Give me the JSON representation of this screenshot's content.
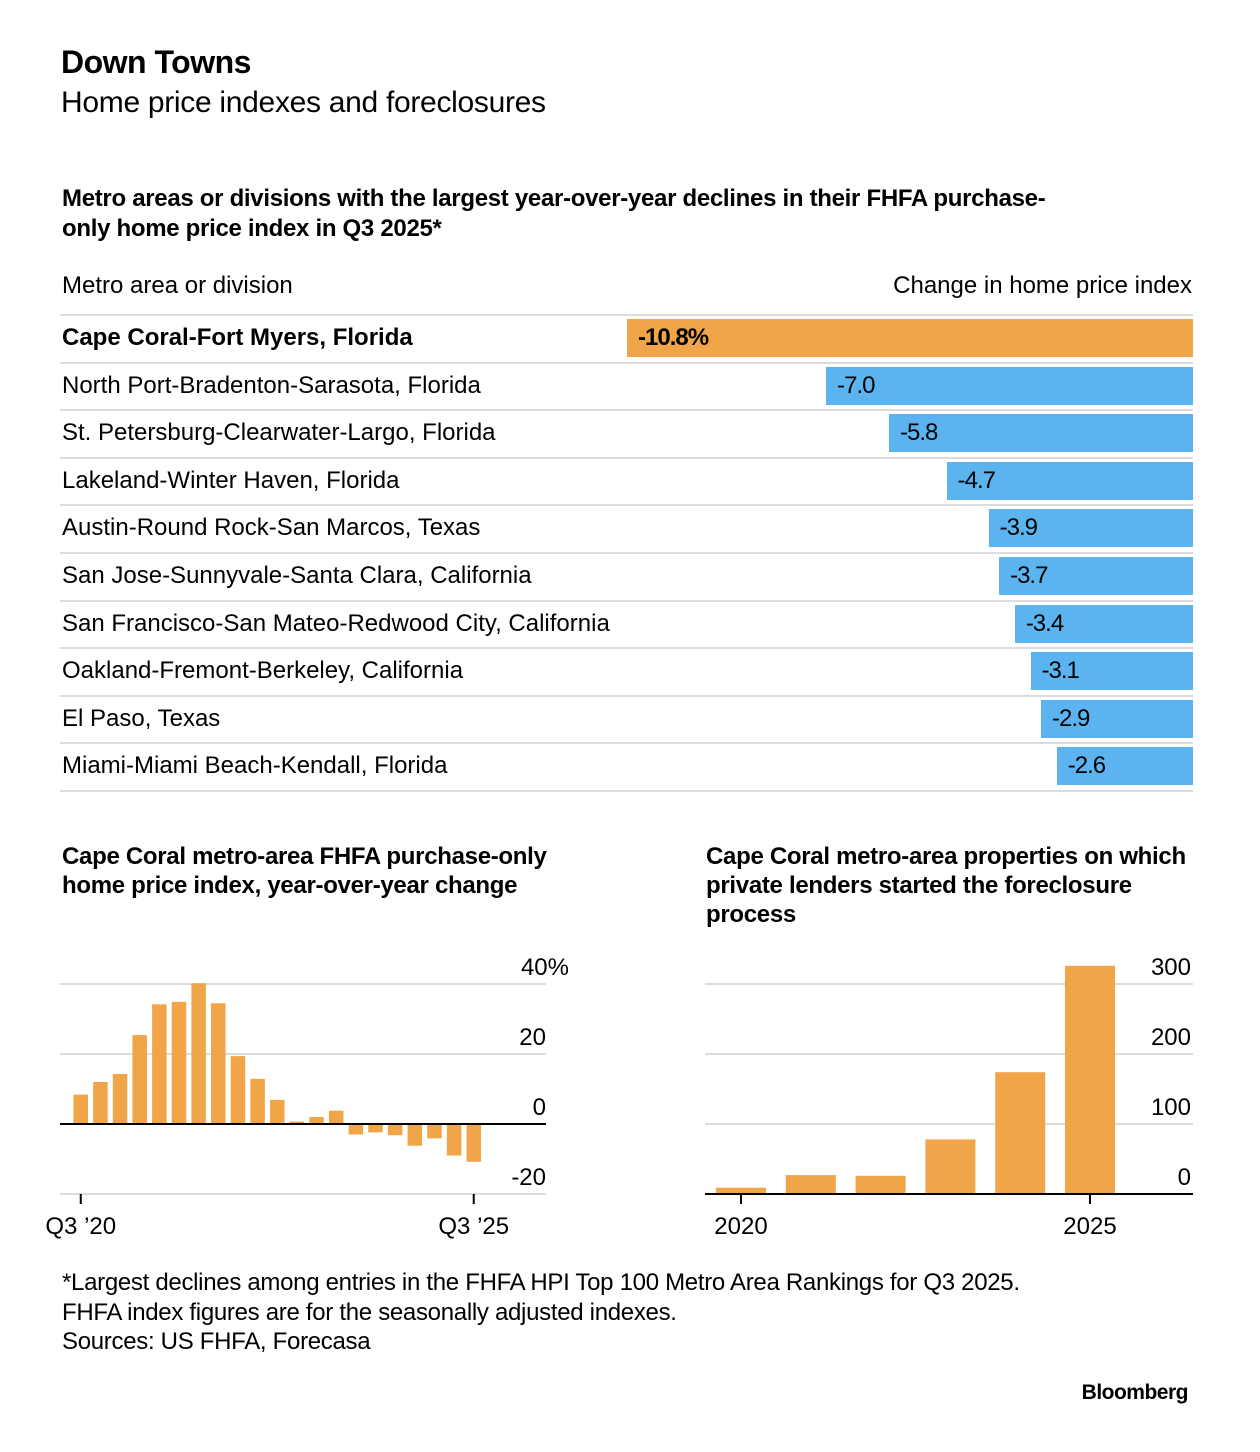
{
  "header": {
    "title": "Down Towns",
    "subtitle": "Home price indexes and foreclosures"
  },
  "colors": {
    "highlight": "#f0a548",
    "bar": "#5bb4f0",
    "grid": "#dcdcdc",
    "axis": "#000000"
  },
  "footer": {
    "note_line1": "*Largest declines among entries in the FHFA HPI Top 100 Metro Area Rankings for Q3 2025.",
    "note_line2": "FHFA index figures are for the seasonally adjusted indexes.",
    "sources": "Sources: US FHFA, Forecasa",
    "brand": "Bloomberg"
  },
  "chart_data": [
    {
      "type": "bar",
      "orientation": "horizontal",
      "title": "Metro areas or divisions with the largest year-over-year declines in their FHFA purchase-only home price index in Q3 2025*",
      "column_left": "Metro area or division",
      "column_right": "Change in home price index",
      "categories": [
        "Cape Coral-Fort Myers, Florida",
        "North Port-Bradenton-Sarasota, Florida",
        "St. Petersburg-Clearwater-Largo, Florida",
        "Lakeland-Winter Haven, Florida",
        "Austin-Round Rock-San Marcos, Texas",
        "San Jose-Sunnyvale-Santa Clara, California",
        "San Francisco-San Mateo-Redwood City, California",
        "Oakland-Fremont-Berkeley, California",
        "El Paso, Texas",
        "Miami-Miami Beach-Kendall, Florida"
      ],
      "values": [
        -10.8,
        -7.0,
        -5.8,
        -4.7,
        -3.9,
        -3.7,
        -3.4,
        -3.1,
        -2.9,
        -2.6
      ],
      "labels": [
        "-10.8%",
        "-7.0",
        "-5.8",
        "-4.7",
        "-3.9",
        "-3.7",
        "-3.4",
        "-3.1",
        "-2.9",
        "-2.6"
      ],
      "highlight_index": 0,
      "xlim": [
        -10.8,
        0
      ]
    },
    {
      "type": "bar",
      "title": "Cape Coral metro-area FHFA purchase-only home price index, year-over-year change",
      "xlabel": "",
      "ylabel": "",
      "x_tick_labels": [
        {
          "index": 0,
          "label": "Q3 ’20"
        },
        {
          "index": 20,
          "label": "Q3 ’25"
        }
      ],
      "y_ticks": [
        40,
        20,
        0,
        -20
      ],
      "y_tick_labels": [
        "40%",
        "20",
        "0",
        "-20"
      ],
      "ylim": [
        -20,
        40
      ],
      "grid": true,
      "categories": [
        "Q3 2020",
        "Q4 2020",
        "Q1 2021",
        "Q2 2021",
        "Q3 2021",
        "Q4 2021",
        "Q1 2022",
        "Q2 2022",
        "Q3 2022",
        "Q4 2022",
        "Q1 2023",
        "Q2 2023",
        "Q3 2023",
        "Q4 2023",
        "Q1 2024",
        "Q2 2024",
        "Q3 2024",
        "Q4 2024",
        "Q1 2025",
        "Q2 2025",
        "Q3 2025"
      ],
      "values": [
        8.4,
        12.0,
        14.3,
        25.4,
        34.2,
        34.9,
        40.2,
        34.5,
        19.4,
        12.9,
        6.9,
        0.7,
        2.0,
        3.8,
        -3.0,
        -2.4,
        -3.2,
        -6.2,
        -4.1,
        -9.0,
        -10.8
      ]
    },
    {
      "type": "bar",
      "title": "Cape Coral metro-area properties on which private lenders started the foreclosure process",
      "xlabel": "",
      "ylabel": "",
      "categories": [
        "2020",
        "2021",
        "2022",
        "2023",
        "2024",
        "2025"
      ],
      "x_tick_labels": [
        {
          "index": 0,
          "label": "2020"
        },
        {
          "index": 5,
          "label": "2025"
        }
      ],
      "y_ticks": [
        300,
        200,
        100,
        0
      ],
      "y_tick_labels": [
        "300",
        "200",
        "100",
        "0"
      ],
      "ylim": [
        0,
        300
      ],
      "grid": true,
      "values": [
        9,
        27,
        26,
        78,
        174,
        326
      ]
    }
  ]
}
